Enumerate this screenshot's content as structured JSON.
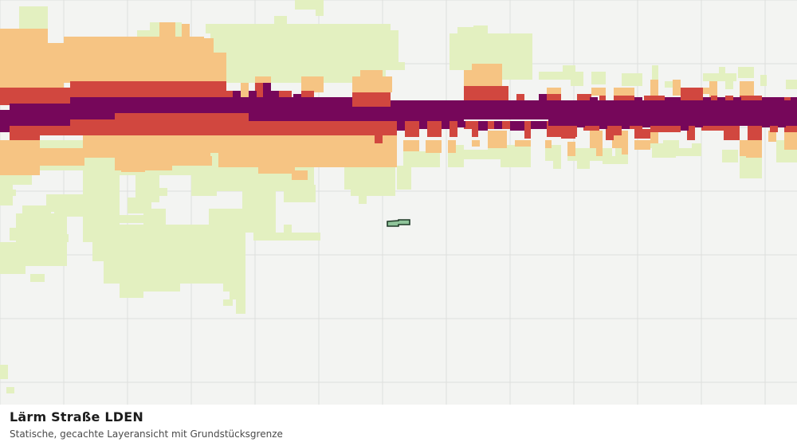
{
  "map": {
    "title": "Lärm Straße LDEN",
    "subtitle": "Statische, gecachte Layeransicht mit Grundstücksgrenze",
    "colors": {
      "background": "#f3f4f2",
      "grid": "#dedfdd",
      "class_1": "#e3f0c0",
      "class_2": "#f6c483",
      "class_3": "#d1473f",
      "class_4": "#76075a",
      "parcel_fill": "#8fc49a",
      "parcel_stroke": "#1f3a27"
    },
    "layers": [
      "noise-zones",
      "parcel-boundary"
    ]
  }
}
